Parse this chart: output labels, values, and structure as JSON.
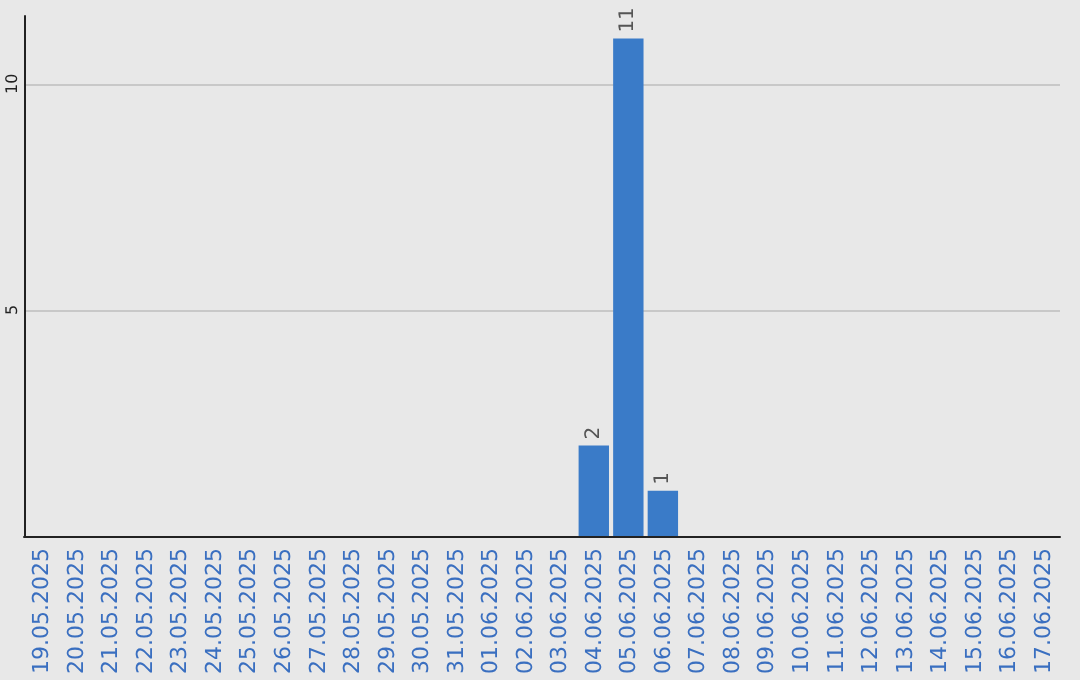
{
  "chart_data": {
    "type": "bar",
    "categories": [
      "19.05.2025",
      "20.05.2025",
      "21.05.2025",
      "22.05.2025",
      "23.05.2025",
      "24.05.2025",
      "25.05.2025",
      "26.05.2025",
      "27.05.2025",
      "28.05.2025",
      "29.05.2025",
      "30.05.2025",
      "31.05.2025",
      "01.06.2025",
      "02.06.2025",
      "03.06.2025",
      "04.06.2025",
      "05.06.2025",
      "06.06.2025",
      "07.06.2025",
      "08.06.2025",
      "09.06.2025",
      "10.06.2025",
      "11.06.2025",
      "12.06.2025",
      "13.06.2025",
      "14.06.2025",
      "15.06.2025",
      "16.06.2025",
      "17.06.2025"
    ],
    "values": [
      null,
      null,
      null,
      null,
      null,
      null,
      null,
      null,
      null,
      null,
      null,
      null,
      null,
      null,
      null,
      null,
      2,
      11,
      1,
      null,
      null,
      null,
      null,
      null,
      null,
      null,
      null,
      null,
      null,
      null
    ],
    "color": "#3a7bc8",
    "ylim": [
      0,
      11.5
    ],
    "yticks": [
      5,
      10
    ],
    "grid": "y",
    "data_labels": true
  }
}
